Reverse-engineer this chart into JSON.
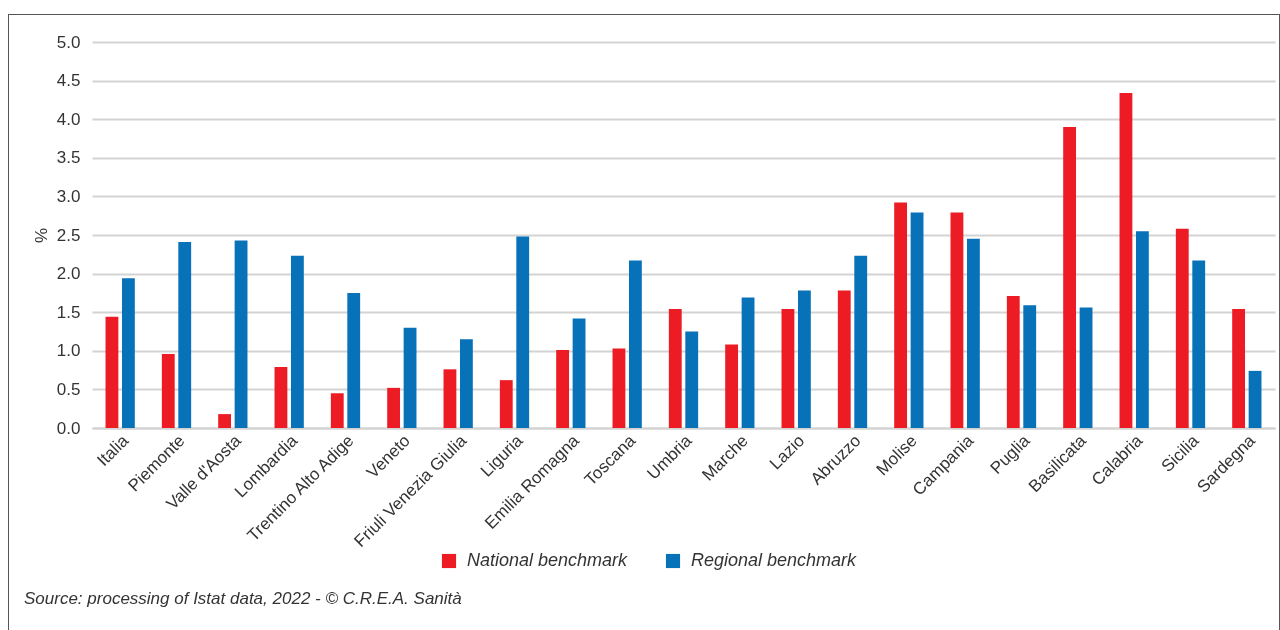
{
  "chart_data": {
    "type": "bar",
    "categories": [
      "Italia",
      "Piemonte",
      "Valle d'Aosta",
      "Lombardia",
      "Trentino Alto Adige",
      "Veneto",
      "Friuli Venezia Giulia",
      "Liguria",
      "Emilia Romagna",
      "Toscana",
      "Umbria",
      "Marche",
      "Lazio",
      "Abruzzo",
      "Molise",
      "Campania",
      "Puglia",
      "Basilicata",
      "Calabria",
      "Sicilia",
      "Sardegna"
    ],
    "series": [
      {
        "name": "National benchmark",
        "color": "#ed1c24",
        "values": [
          1.44,
          0.96,
          0.18,
          0.79,
          0.45,
          0.52,
          0.76,
          0.62,
          1.01,
          1.03,
          1.54,
          1.08,
          1.54,
          1.78,
          2.92,
          2.79,
          1.71,
          3.9,
          4.34,
          2.58,
          1.54
        ]
      },
      {
        "name": "Regional benchmark",
        "color": "#0872b9",
        "values": [
          1.94,
          2.41,
          2.43,
          2.23,
          1.75,
          1.3,
          1.15,
          2.48,
          1.42,
          2.17,
          1.25,
          1.69,
          1.78,
          2.23,
          2.79,
          2.45,
          1.59,
          1.56,
          2.55,
          2.17,
          0.74
        ]
      }
    ],
    "ylabel": "%",
    "ylim": [
      0,
      5
    ],
    "yticks": [
      {
        "value": 0,
        "label": "0.0"
      },
      0.5,
      {
        "value": 1,
        "label": "1.0"
      },
      1.5,
      {
        "value": 2,
        "label": "2.0"
      },
      2.5,
      {
        "value": 3,
        "label": "3.0"
      },
      3.5,
      {
        "value": 4,
        "label": "4.0"
      },
      4.5,
      {
        "value": 5,
        "label": "5.0"
      }
    ],
    "grid": "y",
    "legend": "bottom",
    "annotations": [
      "Source: processing of Istat data, 2022 - © C.R.E.A. Sanità"
    ]
  }
}
